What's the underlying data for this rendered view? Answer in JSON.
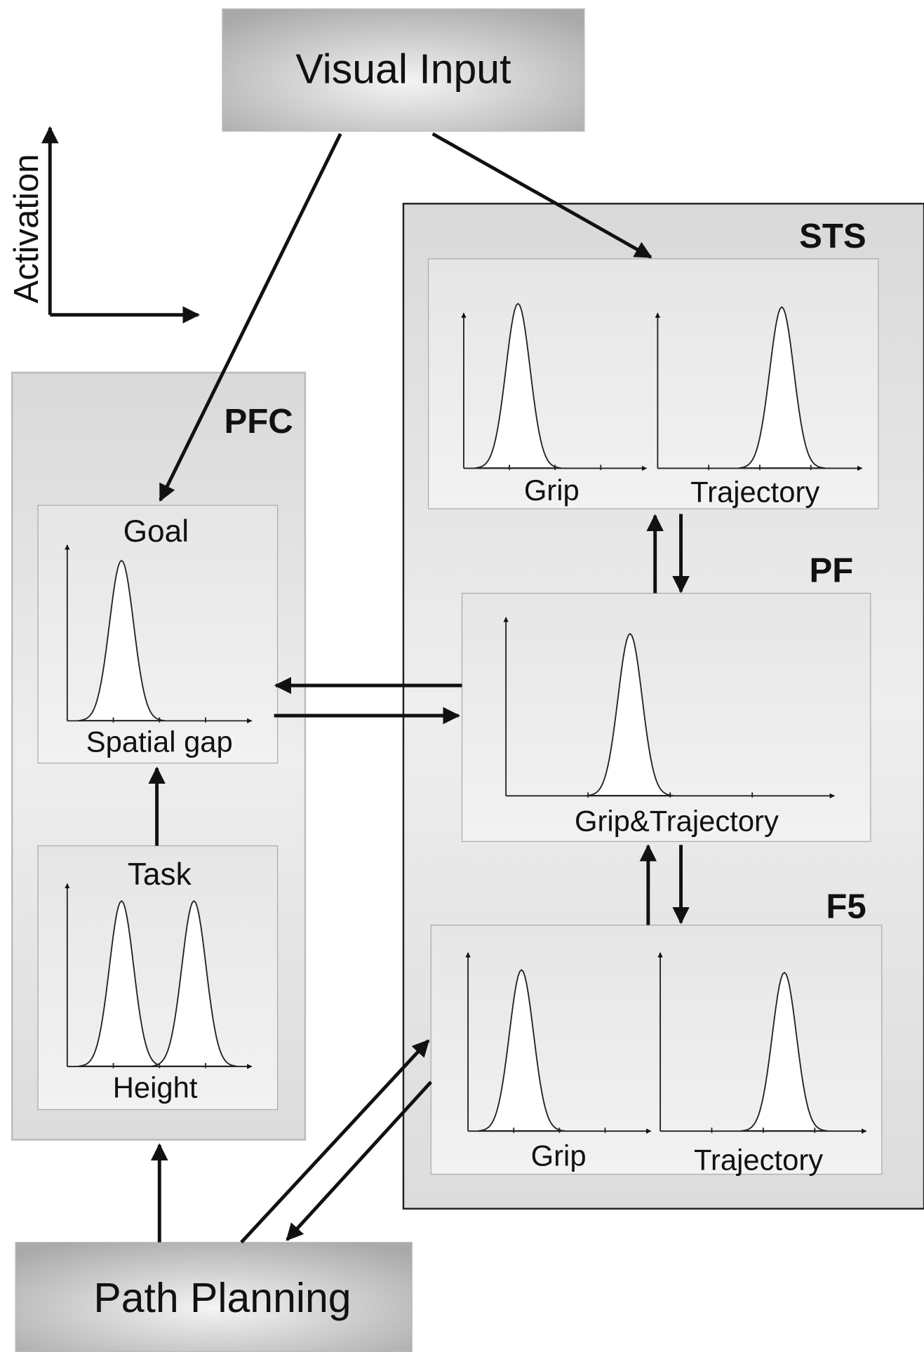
{
  "input": {
    "label": "Visual Input"
  },
  "axis_legend": {
    "label": "Activation"
  },
  "output": {
    "label": "Path Planning"
  },
  "regions": [
    {
      "label": "PFC",
      "fields": [
        {
          "title": "Goal",
          "axis": "Spatial gap"
        },
        {
          "title": "Task",
          "axis": "Height"
        }
      ]
    },
    {
      "label": "STS",
      "fields": [
        {
          "axis": "Grip"
        },
        {
          "axis": "Trajectory"
        }
      ]
    },
    {
      "label": "PF",
      "fields": [
        {
          "axis": "Grip&Trajectory"
        }
      ]
    },
    {
      "label": "F5",
      "fields": [
        {
          "axis": "Grip"
        },
        {
          "axis": "Trajectory"
        }
      ]
    }
  ]
}
